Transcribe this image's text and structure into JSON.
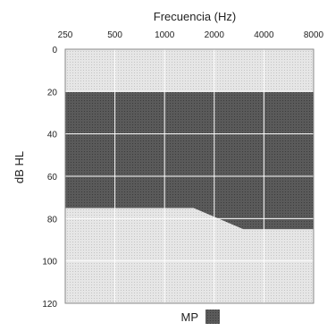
{
  "chart_data": {
    "type": "area",
    "title": "Frecuencia (Hz)",
    "xlabel": "Frecuencia (Hz)",
    "ylabel": "dB HL",
    "x_ticks": [
      "250",
      "500",
      "1000",
      "2000",
      "4000",
      "8000"
    ],
    "y_ticks": [
      0,
      20,
      40,
      60,
      80,
      100,
      120
    ],
    "ylim": [
      0,
      120
    ],
    "y_inverted": true,
    "grid": true,
    "legend": {
      "label": "MP",
      "placement": "bottom-center",
      "color": "#555555"
    },
    "series": [
      {
        "name": "MP",
        "upper_db": [
          20,
          20,
          20,
          20,
          20,
          20
        ],
        "lower_db": [
          75,
          75,
          75,
          80,
          85,
          85
        ],
        "lower_points": [
          {
            "hz": 250,
            "db": 75
          },
          {
            "hz": 1500,
            "db": 75
          },
          {
            "hz": 3000,
            "db": 85
          },
          {
            "hz": 8000,
            "db": 85
          }
        ]
      }
    ],
    "colors": {
      "band": "#555555",
      "plot_bg": "#dcdcdc",
      "grid": "#ffffff",
      "border": "#888888"
    }
  }
}
